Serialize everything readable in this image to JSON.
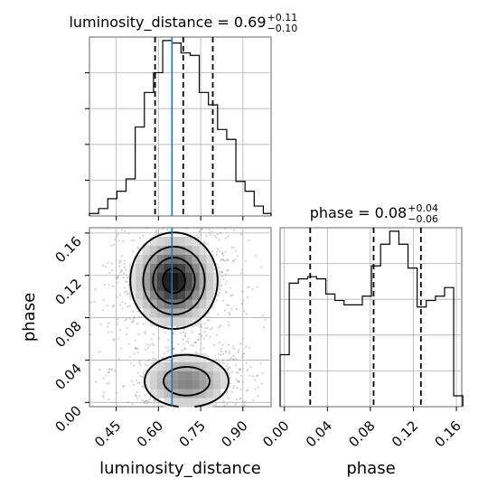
{
  "chart_data": {
    "type": "corner",
    "parameters": [
      "luminosity_distance",
      "phase"
    ],
    "truths": {
      "luminosity_distance": 0.648,
      "phase": null
    },
    "truth_color": "#1f77b4",
    "axes": {
      "luminosity_distance": {
        "label": "luminosity_distance",
        "range": [
          0.355,
          1.0
        ],
        "ticks": [
          0.45,
          0.6,
          0.75,
          0.9
        ],
        "tick_labels": [
          "0.45",
          "0.60",
          "0.75",
          "0.90"
        ]
      },
      "phase": {
        "label": "phase",
        "range": [
          -0.004,
          0.165
        ],
        "ticks": [
          0.0,
          0.04,
          0.08,
          0.12,
          0.16
        ],
        "tick_labels": [
          "0.00",
          "0.04",
          "0.08",
          "0.12",
          "0.16"
        ]
      }
    },
    "marginals": [
      {
        "param": "luminosity_distance",
        "title_prefix": "luminosity_distance = 0.69",
        "title_plus": "+0.11",
        "title_minus": "−0.10",
        "quantiles": [
          0.588,
          0.688,
          0.793
        ],
        "bin_edges": [
          0.355,
          0.3875,
          0.42,
          0.4525,
          0.485,
          0.5175,
          0.55,
          0.5825,
          0.615,
          0.6475,
          0.68,
          0.7125,
          0.745,
          0.7775,
          0.81,
          0.8425,
          0.875,
          0.9075,
          0.94,
          0.9725,
          1.0
        ],
        "counts": [
          1,
          3,
          7,
          10,
          15,
          36,
          50,
          58,
          71,
          70,
          66,
          65,
          50,
          45,
          35,
          31,
          14,
          10,
          4,
          1
        ]
      },
      {
        "param": "phase",
        "title_prefix": "phase = 0.08",
        "title_plus": "+0.04",
        "title_minus": "−0.06",
        "quantiles": [
          0.024,
          0.083,
          0.127
        ],
        "bin_edges": [
          -0.004,
          0.0045,
          0.013,
          0.0215,
          0.03,
          0.0385,
          0.047,
          0.0555,
          0.064,
          0.0725,
          0.081,
          0.0895,
          0.098,
          0.1065,
          0.115,
          0.1235,
          0.132,
          0.1405,
          0.149,
          0.1575,
          0.166
        ],
        "counts": [
          24,
          57,
          59,
          60,
          59,
          52,
          49,
          47,
          47,
          51,
          65,
          75,
          81,
          75,
          64,
          46,
          49,
          51,
          55,
          5
        ]
      }
    ],
    "joint": {
      "x": "luminosity_distance",
      "y": "phase",
      "description_levels": [
        "0.5",
        "1",
        "1.5",
        "2"
      ],
      "modes": [
        {
          "x": 0.655,
          "y": 0.115,
          "sx": 0.075,
          "sy": 0.022,
          "w": 1.0
        },
        {
          "x": 0.7,
          "y": 0.02,
          "sx": 0.085,
          "sy": 0.014,
          "w": 0.55
        }
      ]
    }
  }
}
